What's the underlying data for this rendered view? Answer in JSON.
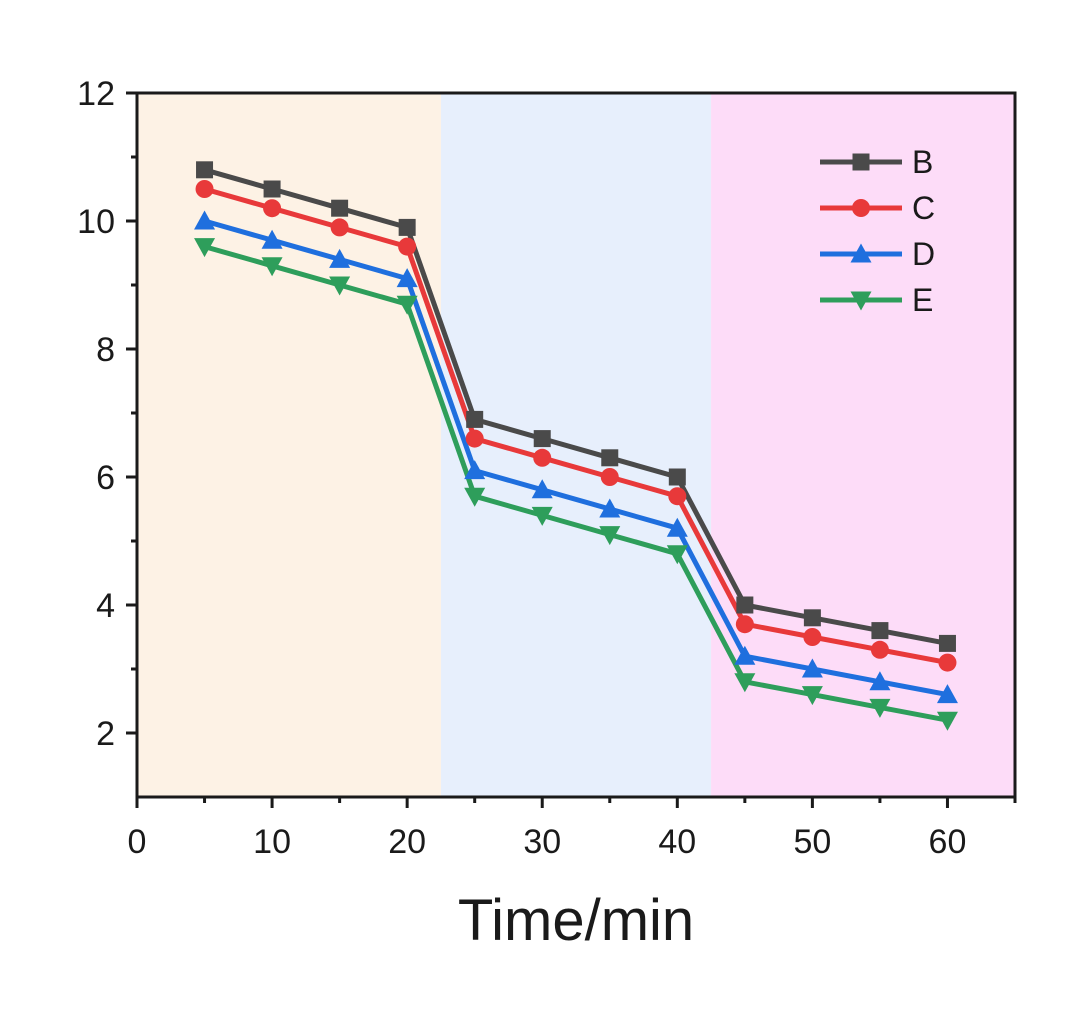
{
  "chart_data": {
    "type": "line",
    "title": "",
    "xlabel": "Time/min",
    "ylabel": "",
    "xlim": [
      0,
      65
    ],
    "ylim": [
      1,
      12
    ],
    "x_ticks": [
      0,
      10,
      20,
      30,
      40,
      50,
      60
    ],
    "x_tick_labels": [
      "0",
      "10",
      "20",
      "30",
      "40",
      "50",
      "60"
    ],
    "y_ticks": [
      2,
      4,
      6,
      8,
      10,
      12
    ],
    "y_tick_labels": [
      "2",
      "4",
      "6",
      "8",
      "10",
      "12"
    ],
    "x_minor_ticks": [
      5,
      15,
      25,
      35,
      45,
      55,
      65
    ],
    "y_minor_ticks": [
      3,
      5,
      7,
      9,
      11
    ],
    "background_bands": [
      {
        "x_start": 0,
        "x_end": 22.5,
        "color": "#fdf2e5"
      },
      {
        "x_start": 22.5,
        "x_end": 42.5,
        "color": "#e7effc"
      },
      {
        "x_start": 42.5,
        "x_end": 65,
        "color": "#fddcf8"
      }
    ],
    "x": [
      5,
      10,
      15,
      20,
      25,
      30,
      35,
      40,
      45,
      50,
      55,
      60
    ],
    "series": [
      {
        "name": "B",
        "color": "#4a4a4a",
        "marker": "square",
        "values": [
          10.8,
          10.5,
          10.2,
          9.9,
          6.9,
          6.6,
          6.3,
          6.0,
          4.0,
          3.8,
          3.6,
          3.4
        ]
      },
      {
        "name": "C",
        "color": "#e8393a",
        "marker": "circle",
        "values": [
          10.5,
          10.2,
          9.9,
          9.6,
          6.6,
          6.3,
          6.0,
          5.7,
          3.7,
          3.5,
          3.3,
          3.1
        ]
      },
      {
        "name": "D",
        "color": "#1f6fde",
        "marker": "triangle-up",
        "values": [
          10.0,
          9.7,
          9.4,
          9.1,
          6.1,
          5.8,
          5.5,
          5.2,
          3.2,
          3.0,
          2.8,
          2.6
        ]
      },
      {
        "name": "E",
        "color": "#2e9e5b",
        "marker": "triangle-down",
        "values": [
          9.6,
          9.3,
          9.0,
          8.7,
          5.7,
          5.4,
          5.1,
          4.8,
          2.8,
          2.6,
          2.4,
          2.2
        ]
      }
    ],
    "legend": {
      "position": "top-right",
      "entries": [
        "B",
        "C",
        "D",
        "E"
      ]
    },
    "grid": false
  }
}
